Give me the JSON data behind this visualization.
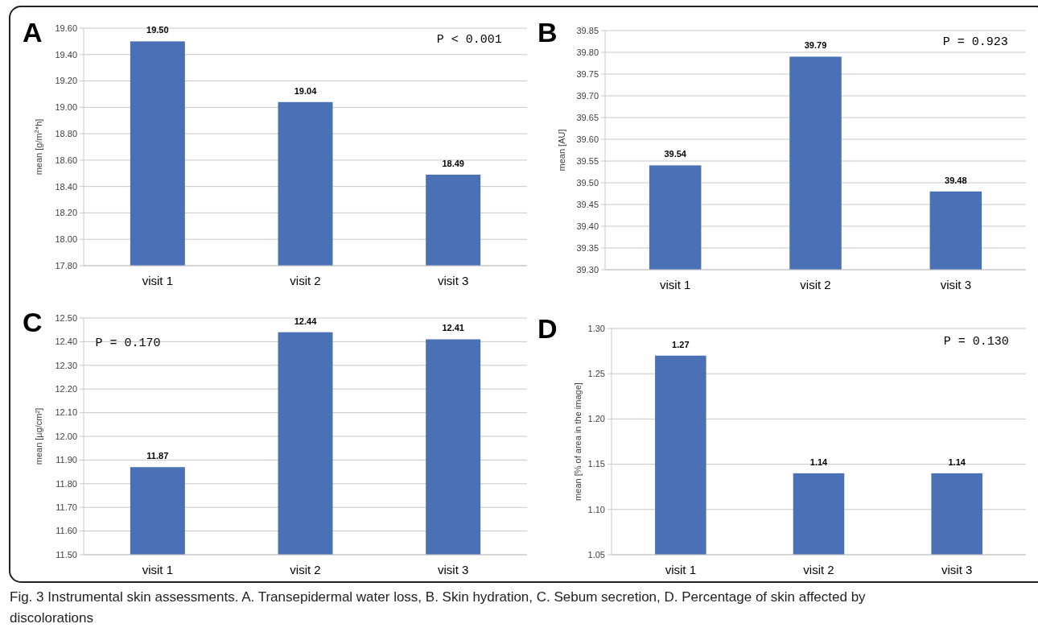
{
  "chart_data": [
    {
      "type": "bar",
      "title": "A",
      "ylabel": "mean [g/m$^{2}$*h]",
      "categories": [
        "visit 1",
        "visit 2",
        "visit 3"
      ],
      "values": [
        19.5,
        19.04,
        18.49
      ],
      "value_labels": [
        "19.50",
        "19.04",
        "18.49"
      ],
      "color": "#4a70b6",
      "ylim": [
        17.8,
        19.6
      ],
      "yticks": [
        {
          "value": 17.8,
          "label": "17.80"
        },
        {
          "value": 18,
          "label": "18.00"
        },
        {
          "value": 18.2,
          "label": "18.20"
        },
        {
          "value": 18.4,
          "label": "18.40"
        },
        {
          "value": 18.6,
          "label": "18.60"
        },
        {
          "value": 18.8,
          "label": "18.80"
        },
        {
          "value": 19,
          "label": "19.00"
        },
        {
          "value": 19.2,
          "label": "19.20"
        },
        {
          "value": 19.4,
          "label": "19.40"
        },
        {
          "value": 19.6,
          "label": "19.60"
        }
      ],
      "grid": "y",
      "annotations": [
        "P < 0.001"
      ]
    },
    {
      "type": "bar",
      "title": "B",
      "ylabel": "mean [AU]",
      "categories": [
        "visit 1",
        "visit 2",
        "visit 3"
      ],
      "values": [
        39.54,
        39.79,
        39.48
      ],
      "value_labels": [
        "39.54",
        "39.79",
        "39.48"
      ],
      "color": "#4a70b6",
      "ylim": [
        39.3,
        39.85
      ],
      "yticks": [
        {
          "value": 39.3,
          "label": "39.30"
        },
        {
          "value": 39.35,
          "label": "39.35"
        },
        {
          "value": 39.4,
          "label": "39.40"
        },
        {
          "value": 39.45,
          "label": "39.45"
        },
        {
          "value": 39.5,
          "label": "39.50"
        },
        {
          "value": 39.55,
          "label": "39.55"
        },
        {
          "value": 39.6,
          "label": "39.60"
        },
        {
          "value": 39.65,
          "label": "39.65"
        },
        {
          "value": 39.7,
          "label": "39.70"
        },
        {
          "value": 39.75,
          "label": "39.75"
        },
        {
          "value": 39.8,
          "label": "39.80"
        },
        {
          "value": 39.85,
          "label": "39.85"
        }
      ],
      "grid": "y",
      "annotations": [
        "P = 0.923"
      ]
    },
    {
      "type": "bar",
      "title": "C",
      "ylabel": "mean [µg/cm²]",
      "categories": [
        "visit 1",
        "visit 2",
        "visit 3"
      ],
      "values": [
        11.87,
        12.44,
        12.41
      ],
      "value_labels": [
        "11.87",
        "12.44",
        "12.41"
      ],
      "color": "#4a70b6",
      "ylim": [
        11.5,
        12.5
      ],
      "yticks": [
        {
          "value": 11.5,
          "label": "11.50"
        },
        {
          "value": 11.6,
          "label": "11.60"
        },
        {
          "value": 11.7,
          "label": "11.70"
        },
        {
          "value": 11.8,
          "label": "11.80"
        },
        {
          "value": 11.9,
          "label": "11.90"
        },
        {
          "value": 12,
          "label": "12.00"
        },
        {
          "value": 12.1,
          "label": "12.10"
        },
        {
          "value": 12.2,
          "label": "12.20"
        },
        {
          "value": 12.3,
          "label": "12.30"
        },
        {
          "value": 12.4,
          "label": "12.40"
        },
        {
          "value": 12.5,
          "label": "12.50"
        }
      ],
      "grid": "y",
      "annotations": [
        "P = 0.170"
      ]
    },
    {
      "type": "bar",
      "title": "D",
      "ylabel": "mean [% of area in the image]",
      "categories": [
        "visit 1",
        "visit 2",
        "visit 3"
      ],
      "values": [
        1.27,
        1.14,
        1.14
      ],
      "value_labels": [
        "1.27",
        "1.14",
        "1.14"
      ],
      "color": "#4a70b6",
      "ylim": [
        1.05,
        1.3
      ],
      "yticks": [
        {
          "value": 1.05,
          "label": "1.05"
        },
        {
          "value": 1.1,
          "label": "1.10"
        },
        {
          "value": 1.15,
          "label": "1.15"
        },
        {
          "value": 1.2,
          "label": "1.20"
        },
        {
          "value": 1.25,
          "label": "1.25"
        },
        {
          "value": 1.3,
          "label": "1.30"
        }
      ],
      "grid": "y",
      "annotations": [
        "P = 0.130",
        "Fig. 3 Instrumental skin assessments. A. Transepidermal water loss, B. Skin hydration, C. Sebum secretion, D. Percentage of skin affected by discolorations"
      ]
    }
  ]
}
